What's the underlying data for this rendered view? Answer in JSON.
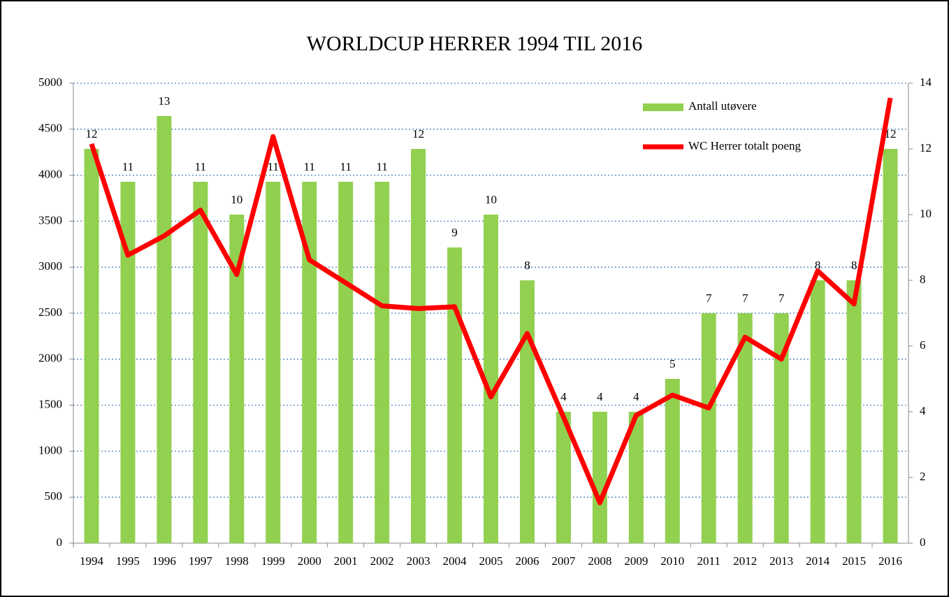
{
  "chart_data": {
    "type": "bar_line",
    "title": "WORLDCUP HERRER 1994 TIL 2016",
    "categories": [
      "1994",
      "1995",
      "1996",
      "1997",
      "1998",
      "1999",
      "2000",
      "2001",
      "2002",
      "2003",
      "2004",
      "2005",
      "2006",
      "2007",
      "2008",
      "2009",
      "2010",
      "2011",
      "2012",
      "2013",
      "2014",
      "2015",
      "2016"
    ],
    "series": [
      {
        "name": "Antall utøvere",
        "type": "bar",
        "axis": "y2",
        "color": "#92d050",
        "values": [
          12,
          11,
          13,
          11,
          10,
          11,
          11,
          11,
          11,
          12,
          9,
          10,
          8,
          4,
          4,
          4,
          5,
          7,
          7,
          7,
          8,
          8,
          12
        ]
      },
      {
        "name": "WC Herrer totalt poeng",
        "type": "line",
        "color": "#ff0000",
        "values": [
          4340,
          3130,
          3340,
          3620,
          2920,
          4420,
          3080,
          2830,
          2580,
          2550,
          2570,
          1590,
          2280,
          1370,
          440,
          1390,
          1610,
          1470,
          2240,
          2000,
          2960,
          2600,
          4840
        ]
      }
    ],
    "ylim": [
      0,
      5000
    ],
    "yticks": [
      0,
      500,
      1000,
      1500,
      2000,
      2500,
      3000,
      3500,
      4000,
      4500,
      5000
    ],
    "y2lim": [
      0,
      14
    ],
    "y2ticks": [
      0,
      2,
      4,
      6,
      8,
      10,
      12,
      14
    ],
    "grid": true,
    "legend": "top-right"
  }
}
